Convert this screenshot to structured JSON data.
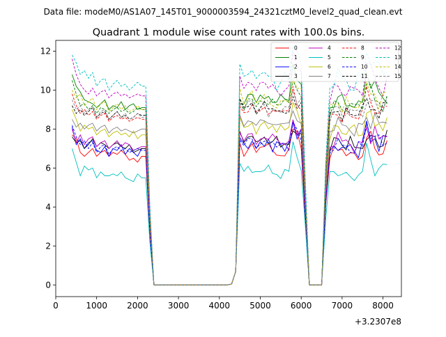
{
  "suptitle": "Data file: modeM0/AS1A07_145T01_9000003594_24321cztM0_level2_quad_clean.evt",
  "chart_data": {
    "type": "line",
    "title": "Quadrant 1 module wise count rates with 100.0s bins.",
    "xlabel": "",
    "ylabel": "",
    "x_offset_label": "+3.2307e8",
    "xlim": [
      0,
      8450
    ],
    "ylim": [
      -0.6,
      12.55
    ],
    "xticks": [
      0,
      1000,
      2000,
      3000,
      4000,
      5000,
      6000,
      7000,
      8000
    ],
    "yticks": [
      0,
      2,
      4,
      6,
      8,
      10,
      12
    ],
    "x": [
      400,
      500,
      600,
      700,
      800,
      900,
      1000,
      1100,
      1200,
      1300,
      1400,
      1500,
      1600,
      1700,
      1800,
      1900,
      2000,
      2100,
      2200,
      2300,
      2400,
      2500,
      2600,
      2700,
      2800,
      2900,
      3000,
      3100,
      3200,
      3300,
      3400,
      3500,
      3600,
      3700,
      3800,
      3900,
      4000,
      4100,
      4200,
      4300,
      4400,
      4500,
      4600,
      4700,
      4800,
      4900,
      5000,
      5100,
      5200,
      5300,
      5400,
      5500,
      5600,
      5700,
      5800,
      5900,
      6000,
      6100,
      6200,
      6300,
      6400,
      6500,
      6600,
      6700,
      6800,
      6900,
      7000,
      7100,
      7200,
      7300,
      7400,
      7500,
      7600,
      7700,
      7800,
      7900,
      8000,
      8100
    ],
    "series": [
      {
        "name": "0",
        "color": "#ff0000",
        "dash": "solid",
        "base": [
          7.7,
          7.5,
          6.8,
          6.6,
          6.8,
          7.0,
          6.6,
          6.8,
          6.9,
          6.6,
          6.8,
          6.7,
          6.9,
          6.7,
          6.4,
          6.5,
          6.3,
          6.6
        ]
      },
      {
        "name": "1",
        "color": "#008000",
        "dash": "solid",
        "base": [
          10.8,
          10.2,
          9.9,
          9.5,
          9.4,
          9.3,
          9.1,
          9.3,
          9.5,
          9.0,
          9.2,
          9.1,
          9.4,
          9.0,
          9.2,
          9.3,
          9.0,
          9.1
        ]
      },
      {
        "name": "2",
        "color": "#0000ff",
        "dash": "solid",
        "base": [
          8.1,
          7.2,
          7.5,
          7.0,
          7.3,
          7.4,
          6.9,
          6.8,
          7.1,
          6.6,
          7.0,
          6.9,
          7.2,
          6.7,
          7.0,
          6.8,
          6.6,
          7.0
        ]
      },
      {
        "name": "3",
        "color": "#000000",
        "dash": "solid",
        "base": [
          7.6,
          7.3,
          7.4,
          7.0,
          7.2,
          7.5,
          7.1,
          7.3,
          7.2,
          7.0,
          7.2,
          7.3,
          7.1,
          7.0,
          7.2,
          6.8,
          6.9,
          7.0
        ]
      },
      {
        "name": "4",
        "color": "#bf00bf",
        "dash": "solid",
        "base": [
          8.0,
          7.3,
          7.7,
          7.2,
          7.5,
          7.6,
          7.1,
          7.3,
          7.4,
          7.0,
          7.2,
          7.4,
          7.1,
          7.3,
          7.2,
          6.9,
          7.0,
          7.1
        ]
      },
      {
        "name": "5",
        "color": "#00bfbf",
        "dash": "solid",
        "base": [
          7.0,
          6.3,
          5.6,
          6.1,
          5.9,
          6.0,
          5.5,
          5.8,
          5.6,
          5.6,
          5.7,
          5.6,
          5.8,
          5.5,
          5.4,
          5.3,
          5.7,
          5.5
        ]
      },
      {
        "name": "6",
        "color": "#bfbf00",
        "dash": "solid",
        "base": [
          9.0,
          8.5,
          7.9,
          8.2,
          8.0,
          8.1,
          7.7,
          7.9,
          8.0,
          7.6,
          7.8,
          7.9,
          7.7,
          7.8,
          7.6,
          7.9,
          7.5,
          7.7
        ]
      },
      {
        "name": "7",
        "color": "#808080",
        "dash": "solid",
        "base": [
          8.5,
          8.1,
          8.3,
          8.0,
          8.2,
          8.3,
          7.9,
          8.1,
          8.2,
          7.8,
          8.0,
          8.1,
          7.9,
          8.0,
          7.9,
          7.8,
          7.9,
          8.0
        ]
      },
      {
        "name": "8",
        "color": "#ff0000",
        "dash": "dashed",
        "base": [
          9.8,
          9.2,
          8.8,
          9.0,
          8.7,
          8.9,
          8.5,
          8.7,
          8.8,
          8.4,
          8.6,
          8.7,
          8.5,
          8.6,
          8.4,
          8.5,
          8.6,
          8.5
        ]
      },
      {
        "name": "9",
        "color": "#008000",
        "dash": "dashed",
        "base": [
          10.5,
          9.8,
          9.2,
          9.3,
          9.0,
          9.2,
          8.8,
          9.1,
          9.0,
          8.8,
          9.0,
          9.1,
          8.9,
          9.0,
          8.8,
          8.9,
          9.1,
          9.0
        ]
      },
      {
        "name": "10",
        "color": "#0000ff",
        "dash": "dashed",
        "base": [
          8.2,
          7.6,
          7.2,
          7.4,
          7.0,
          7.3,
          6.8,
          7.1,
          7.2,
          6.7,
          7.0,
          7.1,
          6.9,
          7.0,
          6.8,
          6.9,
          7.0,
          6.9
        ]
      },
      {
        "name": "11",
        "color": "#000000",
        "dash": "dashed",
        "base": [
          9.2,
          8.8,
          9.0,
          8.7,
          8.9,
          9.1,
          8.6,
          8.8,
          8.9,
          8.5,
          8.7,
          8.9,
          8.6,
          8.7,
          8.5,
          8.6,
          8.8,
          8.7
        ]
      },
      {
        "name": "12",
        "color": "#bf00bf",
        "dash": "dashed",
        "base": [
          11.6,
          10.8,
          10.3,
          10.0,
          9.8,
          10.1,
          9.7,
          9.9,
          10.0,
          9.6,
          9.8,
          9.9,
          9.7,
          9.8,
          9.6,
          9.7,
          9.8,
          9.7
        ]
      },
      {
        "name": "13",
        "color": "#00bfbf",
        "dash": "dashed",
        "base": [
          11.8,
          11.4,
          10.8,
          11.0,
          10.6,
          10.9,
          10.2,
          10.5,
          10.6,
          10.0,
          10.3,
          10.5,
          10.2,
          10.3,
          10.0,
          10.2,
          10.4,
          10.2
        ]
      },
      {
        "name": "14",
        "color": "#bfbf00",
        "dash": "dashed",
        "base": [
          10.0,
          9.6,
          9.8,
          9.2,
          9.4,
          9.6,
          9.0,
          9.3,
          9.4,
          8.9,
          9.1,
          9.3,
          9.0,
          9.2,
          8.9,
          9.0,
          9.2,
          9.0
        ]
      },
      {
        "name": "15",
        "color": "#808080",
        "dash": "dashed",
        "base": [
          9.5,
          9.0,
          9.2,
          8.8,
          9.0,
          9.1,
          8.6,
          8.9,
          9.0,
          8.5,
          8.7,
          8.9,
          8.6,
          8.8,
          8.5,
          8.6,
          8.8,
          8.6
        ]
      }
    ],
    "legend": {
      "position": "top-right",
      "columns": 4,
      "order": [
        "0",
        "1",
        "2",
        "3",
        "4",
        "5",
        "6",
        "7",
        "8",
        "9",
        "10",
        "11",
        "12",
        "13",
        "14",
        "15"
      ]
    }
  }
}
